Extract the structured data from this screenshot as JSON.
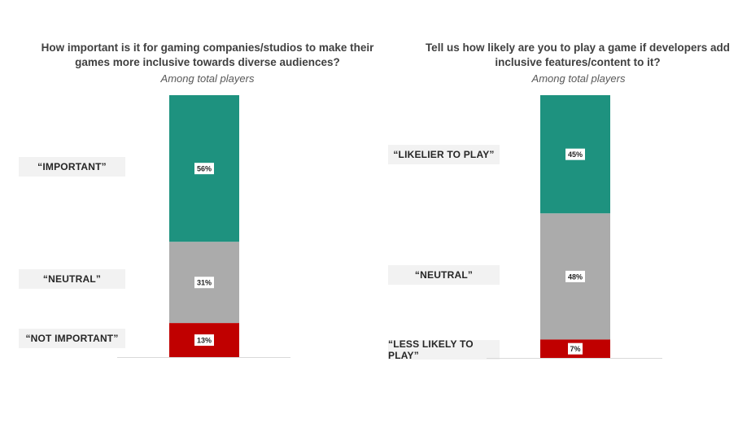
{
  "colors": {
    "important": "#1e927f",
    "neutral": "#ababab",
    "low": "#c00000",
    "label_bg": "#f2f2f2",
    "axis": "#d9d9d9"
  },
  "chart_data": [
    {
      "type": "bar",
      "stacked": true,
      "title": "How important is it for gaming companies/studios to make their games more inclusive towards diverse audiences?",
      "subtitle": "Among total players",
      "categories": [
        "“IMPORTANT”",
        "“NEUTRAL”",
        "“NOT IMPORTANT”"
      ],
      "values": [
        56,
        31,
        13
      ],
      "data_labels": [
        "56%",
        "31%",
        "13%"
      ],
      "ylim": [
        0,
        100
      ]
    },
    {
      "type": "bar",
      "stacked": true,
      "title": "Tell us how likely are you to play a game if developers add inclusive features/content to it?",
      "subtitle": "Among total players",
      "categories": [
        "“LIKELIER TO PLAY”",
        "“NEUTRAL”",
        "“LESS LIKELY TO PLAY”"
      ],
      "values": [
        45,
        48,
        7
      ],
      "data_labels": [
        "45%",
        "48%",
        "7%"
      ],
      "ylim": [
        0,
        100
      ]
    }
  ]
}
